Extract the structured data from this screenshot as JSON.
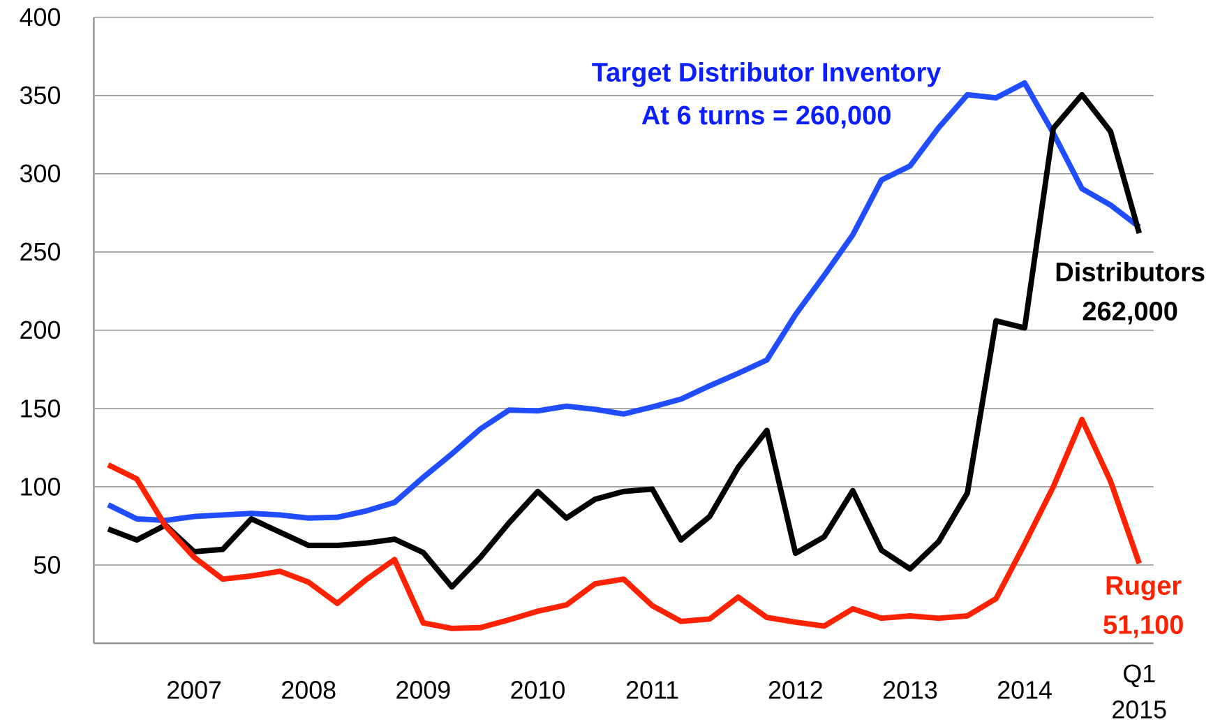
{
  "chart_data": {
    "type": "line",
    "categories": [
      null,
      null,
      null,
      "2007",
      null,
      null,
      null,
      "2008",
      null,
      null,
      null,
      "2009",
      null,
      null,
      null,
      "2010",
      null,
      null,
      null,
      "2011",
      null,
      null,
      null,
      null,
      "2012",
      null,
      null,
      null,
      "2013",
      null,
      null,
      null,
      "2014",
      null,
      null,
      null,
      "Q1\n2015"
    ],
    "series": [
      {
        "name": "Target Distributor Inventory",
        "annotation": "At 6 turns = 260,000",
        "color": "#1f4dff",
        "text_color": "#0a1eff",
        "values": [
          88.5,
          79.5,
          78.5,
          81,
          82,
          83,
          82,
          80,
          80.5,
          84.5,
          90,
          106,
          121,
          137,
          149,
          148.5,
          151.5,
          149.5,
          146.5,
          151,
          156,
          164.5,
          172.5,
          181,
          210,
          235,
          261,
          296,
          305,
          329.5,
          350.5,
          348.5,
          358,
          326,
          290.5,
          280,
          266
        ]
      },
      {
        "name": "Distributors",
        "annotation": "262,000",
        "color": "#000000",
        "text_color": "#000000",
        "values": [
          73,
          66,
          75.5,
          58.5,
          60,
          79.5,
          71,
          62.5,
          62.5,
          64,
          66.5,
          58,
          36,
          55,
          77,
          97,
          80,
          92,
          97,
          98.5,
          66,
          81,
          112.5,
          136,
          57.5,
          68,
          97.5,
          59.5,
          47.5,
          65,
          96,
          206,
          201.5,
          329,
          350.5,
          327,
          262
        ]
      },
      {
        "name": "Ruger",
        "annotation": "51,100",
        "color": "#ff2200",
        "text_color": "#ff2200",
        "values": [
          114,
          105,
          75,
          55,
          41,
          43,
          46,
          39,
          25.5,
          40.5,
          53.5,
          13,
          9.5,
          10,
          15,
          20.5,
          24.5,
          38,
          41,
          24,
          14,
          15.5,
          29.5,
          16.5,
          13.5,
          11,
          22,
          16,
          17.5,
          16,
          17.5,
          28.5,
          63.5,
          100,
          143,
          103.5,
          51
        ]
      }
    ],
    "ylim": [
      0,
      400
    ],
    "yticks": [
      50,
      100,
      150,
      200,
      250,
      300,
      350,
      400
    ],
    "grid": true
  }
}
